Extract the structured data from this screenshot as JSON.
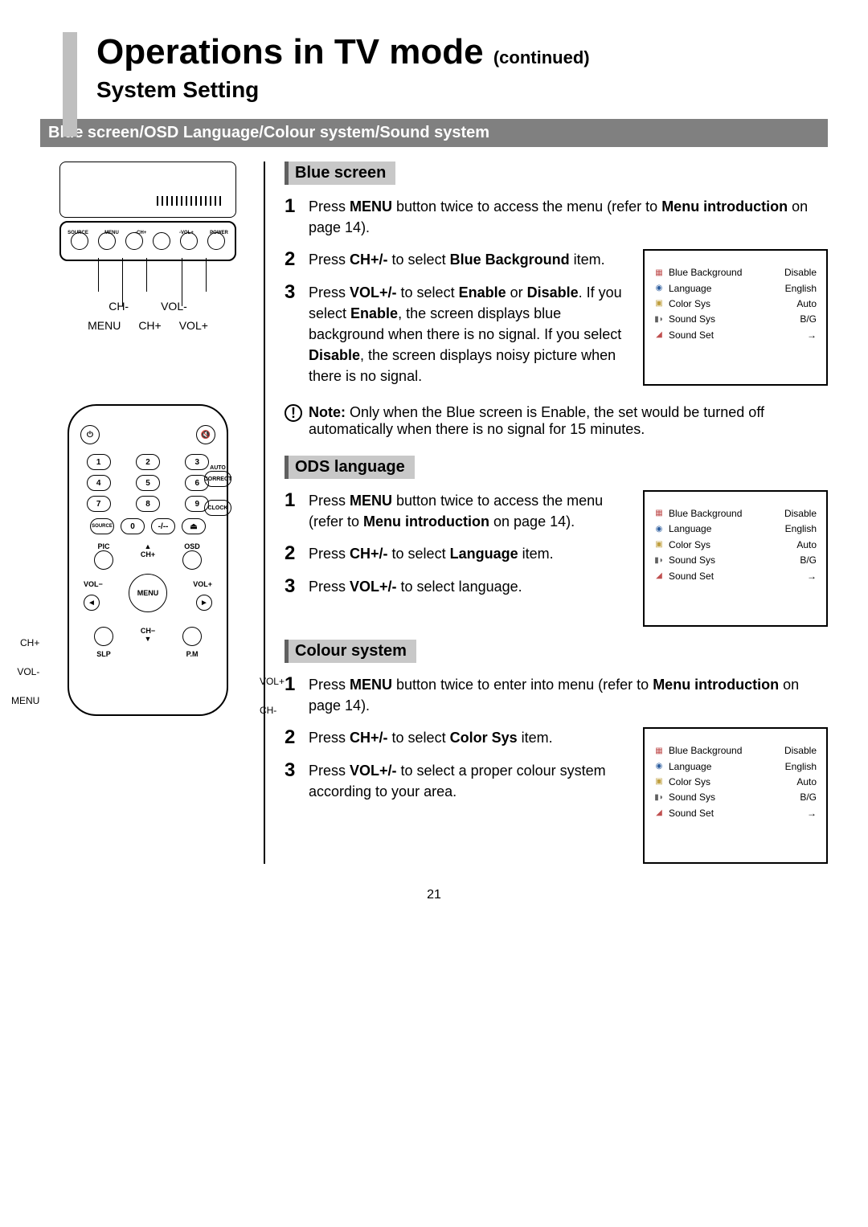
{
  "page_number": "21",
  "title": {
    "main": "Operations in TV mode",
    "continued": "(continued)",
    "sub": "System Setting"
  },
  "banner": "Blue screen/OSD Language/Colour system/Sound system",
  "colors": {
    "banner_bg": "#808080",
    "banner_fg": "#ffffff",
    "sect_bg": "#c8c8c8",
    "sect_border": "#606060",
    "sidebar": "#bfbfbf"
  },
  "tv": {
    "panel_row_labels": [
      "SOURCE",
      "MENU",
      "-CH+",
      "-VOL+",
      "POWER"
    ],
    "callout_top": [
      "CH-",
      "VOL-"
    ],
    "callout_bot": [
      "MENU",
      "CH+",
      "VOL+"
    ]
  },
  "remote": {
    "numpad": [
      "1",
      "2",
      "3",
      "4",
      "5",
      "6",
      "7",
      "8",
      "9"
    ],
    "row_source": [
      "SOURCE",
      "0",
      "-/--",
      "⏏"
    ],
    "side_btns": [
      "AUTO CORRECT",
      "CLOCK"
    ],
    "row_pic": [
      "PIC",
      "CH+",
      "OSD"
    ],
    "menu_label": "MENU",
    "vol_minus": "VOL−",
    "vol_plus": "VOL+",
    "bottom_row": [
      "SLP",
      "CH−",
      "P.M"
    ],
    "side_left": [
      "CH+",
      "VOL-",
      "MENU"
    ],
    "side_right": [
      "VOL+",
      "CH-"
    ]
  },
  "osd": {
    "rows": [
      {
        "icon": "▦",
        "icon_color": "#c05050",
        "label": "Blue Background",
        "value": "Disable"
      },
      {
        "icon": "◉",
        "icon_color": "#3060a0",
        "label": "Language",
        "value": "English"
      },
      {
        "icon": "▣",
        "icon_color": "#c0a040",
        "label": "Color Sys",
        "value": "Auto"
      },
      {
        "icon": "▮◗",
        "icon_color": "#606060",
        "label": "Sound Sys",
        "value": "B/G"
      },
      {
        "icon": "◢",
        "icon_color": "#c05050",
        "label": "Sound Set",
        "value": "→"
      }
    ]
  },
  "sections": {
    "blue": {
      "hdr": "Blue screen",
      "s1a": "Press ",
      "s1b": "MENU",
      "s1c": " button twice to access the menu (refer to ",
      "s1d": "Menu introduction",
      "s1e": " on page 14).",
      "s2a": "Press ",
      "s2b": "CH+/-",
      "s2c": " to select ",
      "s2d": "Blue Background",
      "s2e": " item.",
      "s3a": "Press ",
      "s3b": "VOL+/-",
      "s3c": " to select ",
      "s3d": "Enable",
      "s3e": " or ",
      "s3f": "Disable",
      "s3g": ". If you select ",
      "s3h": "Enable",
      "s3i": ", the screen displays blue background when there is no signal. If you select ",
      "s3j": "Disable",
      "s3k": ", the screen displays noisy picture when there is no signal.",
      "note_b": "Note:",
      "note": " Only when the Blue screen is Enable, the set would be turned off automatically when there is no signal for 15 minutes."
    },
    "ods": {
      "hdr": "ODS language",
      "s1a": "Press ",
      "s1b": "MENU",
      "s1c": " button twice to access the menu (refer to ",
      "s1d": "Menu introduction",
      "s1e": " on page 14).",
      "s2a": "Press ",
      "s2b": "CH+/-",
      "s2c": " to select ",
      "s2d": "Language",
      "s2e": " item.",
      "s3a": "Press ",
      "s3b": "VOL+/-",
      "s3c": " to select language."
    },
    "colour": {
      "hdr": "Colour system",
      "s1a": "Press ",
      "s1b": "MENU",
      "s1c": " button twice to enter into menu (refer to ",
      "s1d": "Menu introduction",
      "s1e": " on page 14).",
      "s2a": "Press ",
      "s2b": "CH+/-",
      "s2c": " to select ",
      "s2d": "Color Sys",
      "s2e": " item.",
      "s3a": "Press ",
      "s3b": "VOL+/-",
      "s3c": " to select a proper colour system according to your area."
    }
  }
}
